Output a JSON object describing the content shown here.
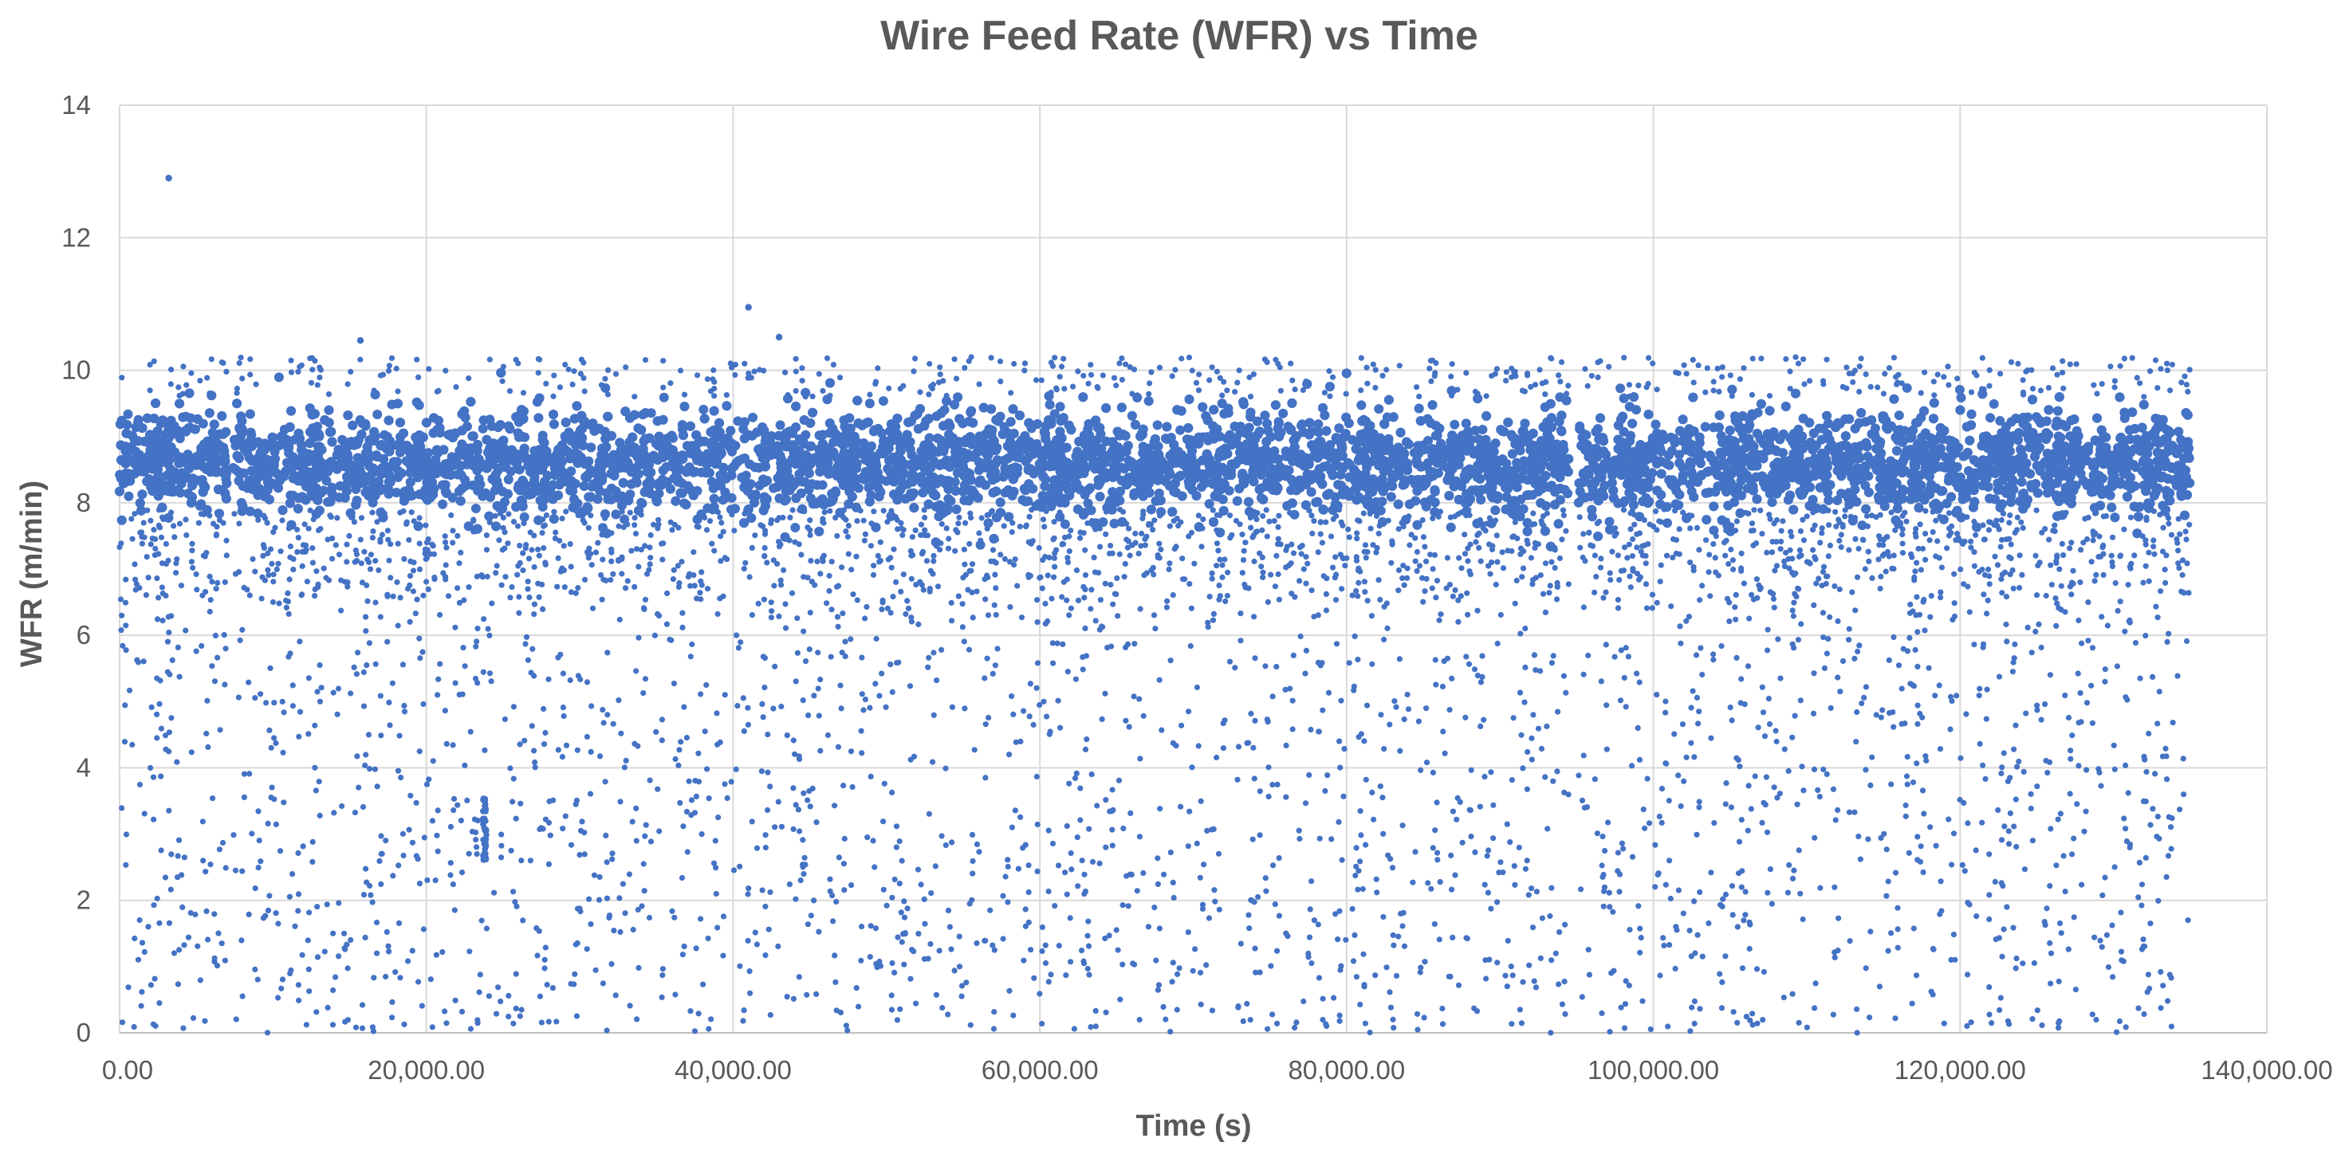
{
  "chart_data": {
    "type": "scatter",
    "title": "Wire Feed Rate (WFR) vs Time",
    "xlabel": "Time (s)",
    "ylabel": "WFR (m/min)",
    "xlim": [
      0,
      140000
    ],
    "ylim": [
      0,
      14
    ],
    "x_ticks": [
      0,
      20000,
      40000,
      60000,
      80000,
      100000,
      120000,
      140000
    ],
    "x_tick_labels": [
      "0.00",
      "20,000.00",
      "40,000.00",
      "60,000.00",
      "80,000.00",
      "100,000.00",
      "120,000.00",
      "140,000.00"
    ],
    "y_ticks": [
      0,
      2,
      4,
      6,
      8,
      10,
      12,
      14
    ],
    "y_tick_labels": [
      "0",
      "2",
      "4",
      "6",
      "8",
      "10",
      "12",
      "14"
    ],
    "grid": true,
    "legend": "none",
    "marker_color": "#4472c4",
    "series": [
      {
        "data_extent_x": [
          0,
          135000
        ],
        "main_band_wfr_range": [
          7.5,
          9.7
        ],
        "main_band_wfr_center": 8.6,
        "data_gaps_x": [
          [
            7000,
            7400
          ],
          [
            94500,
            95100
          ]
        ],
        "notable_points": [
          {
            "x": 3200,
            "y": 12.9
          },
          {
            "x": 15700,
            "y": 10.45
          },
          {
            "x": 41000,
            "y": 10.95
          },
          {
            "x": 43000,
            "y": 10.5
          },
          {
            "x": 23800,
            "y": 3.5
          },
          {
            "x": 23800,
            "y": 2.7
          }
        ]
      }
    ]
  }
}
